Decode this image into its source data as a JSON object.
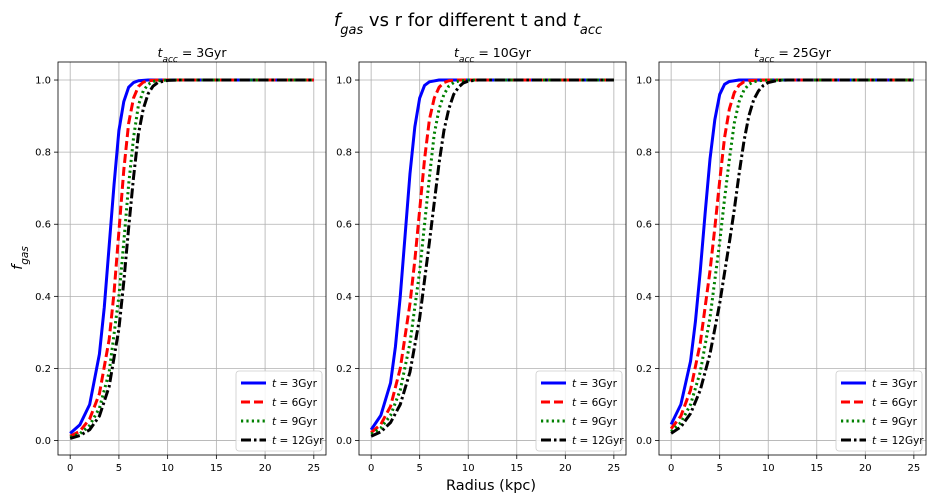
{
  "figure": {
    "suptitle_parts": [
      {
        "t": "f",
        "style": "italic",
        "sub": false
      },
      {
        "t": "gas",
        "style": "italic",
        "sub": true
      },
      {
        "t": " vs r for different t and ",
        "style": "normal",
        "sub": false
      },
      {
        "t": "t",
        "style": "italic",
        "sub": false
      },
      {
        "t": "acc",
        "style": "italic",
        "sub": true
      }
    ],
    "xlabel": "Radius (kpc)",
    "ylabel_parts": [
      {
        "t": "f",
        "style": "italic",
        "sub": false
      },
      {
        "t": "gas",
        "style": "italic",
        "sub": true
      }
    ],
    "background": "#ffffff",
    "grid_color": "#b0b0b0"
  },
  "chart_data": [
    {
      "type": "line",
      "title_parts": [
        {
          "t": "t",
          "style": "italic",
          "sub": false
        },
        {
          "t": "acc",
          "style": "italic",
          "sub": true
        },
        {
          "t": " = 3Gyr",
          "style": "normal",
          "sub": false
        }
      ],
      "xlim": [
        -1.25,
        26.25
      ],
      "ylim": [
        -0.04,
        1.05
      ],
      "xticks": [
        0,
        5,
        10,
        15,
        20,
        25
      ],
      "yticks": [
        0.0,
        0.2,
        0.4,
        0.6,
        0.8,
        1.0
      ],
      "grid": true,
      "legend_loc": "lower right",
      "series": [
        {
          "name": "t = 3Gyr",
          "color": "#0000ff",
          "dash": "solid",
          "x": [
            0,
            1,
            2,
            3,
            3.5,
            4,
            4.5,
            5,
            5.5,
            6,
            6.5,
            7,
            8,
            9,
            10,
            12,
            15,
            20,
            25
          ],
          "y": [
            0.02,
            0.044,
            0.1,
            0.24,
            0.37,
            0.54,
            0.71,
            0.86,
            0.94,
            0.98,
            0.993,
            0.998,
            1.0,
            1.0,
            1.0,
            1.0,
            1.0,
            1.0,
            1.0
          ]
        },
        {
          "name": "t = 6Gyr",
          "color": "#ff0000",
          "dash": "dashed",
          "x": [
            0,
            1,
            2,
            3,
            4,
            4.5,
            5,
            5.5,
            6,
            6.5,
            7,
            7.5,
            8,
            9,
            10,
            12,
            15,
            20,
            25
          ],
          "y": [
            0.012,
            0.026,
            0.06,
            0.13,
            0.28,
            0.41,
            0.58,
            0.75,
            0.88,
            0.95,
            0.982,
            0.994,
            0.998,
            1.0,
            1.0,
            1.0,
            1.0,
            1.0,
            1.0
          ]
        },
        {
          "name": "t = 9Gyr",
          "color": "#008000",
          "dash": "dotted",
          "x": [
            0,
            1,
            2,
            3,
            4,
            5,
            5.5,
            6,
            6.5,
            7,
            7.5,
            8,
            8.5,
            9,
            10,
            12,
            15,
            20,
            25
          ],
          "y": [
            0.009,
            0.019,
            0.042,
            0.09,
            0.19,
            0.4,
            0.55,
            0.71,
            0.84,
            0.93,
            0.97,
            0.988,
            0.996,
            0.998,
            1.0,
            1.0,
            1.0,
            1.0,
            1.0
          ]
        },
        {
          "name": "t = 12Gyr",
          "color": "#000000",
          "dash": "dashdot",
          "x": [
            0,
            1,
            2,
            3,
            4,
            5,
            5.5,
            6,
            6.5,
            7,
            7.5,
            8,
            8.5,
            9,
            10,
            11,
            12,
            15,
            20,
            25
          ],
          "y": [
            0.006,
            0.014,
            0.03,
            0.068,
            0.15,
            0.31,
            0.44,
            0.59,
            0.73,
            0.85,
            0.92,
            0.962,
            0.983,
            0.993,
            0.999,
            1.0,
            1.0,
            1.0,
            1.0,
            1.0
          ]
        }
      ]
    },
    {
      "type": "line",
      "title_parts": [
        {
          "t": "t",
          "style": "italic",
          "sub": false
        },
        {
          "t": "acc",
          "style": "italic",
          "sub": true
        },
        {
          "t": " = 10Gyr",
          "style": "normal",
          "sub": false
        }
      ],
      "xlim": [
        -1.25,
        26.25
      ],
      "ylim": [
        -0.04,
        1.05
      ],
      "xticks": [
        0,
        5,
        10,
        15,
        20,
        25
      ],
      "yticks": [
        0.0,
        0.2,
        0.4,
        0.6,
        0.8,
        1.0
      ],
      "grid": true,
      "legend_loc": "lower right",
      "series": [
        {
          "name": "t = 3Gyr",
          "color": "#0000ff",
          "dash": "solid",
          "x": [
            0,
            1,
            2,
            2.5,
            3,
            3.5,
            4,
            4.5,
            5,
            5.5,
            6,
            7,
            8,
            10,
            12,
            15,
            20,
            25
          ],
          "y": [
            0.03,
            0.07,
            0.16,
            0.26,
            0.4,
            0.57,
            0.74,
            0.87,
            0.95,
            0.985,
            0.995,
            1.0,
            1.0,
            1.0,
            1.0,
            1.0,
            1.0,
            1.0
          ]
        },
        {
          "name": "t = 6Gyr",
          "color": "#ff0000",
          "dash": "dashed",
          "x": [
            0,
            1,
            2,
            3,
            4,
            4.5,
            5,
            5.5,
            6,
            6.5,
            7,
            7.5,
            8,
            9,
            10,
            12,
            15,
            20,
            25
          ],
          "y": [
            0.022,
            0.045,
            0.095,
            0.2,
            0.38,
            0.5,
            0.64,
            0.78,
            0.89,
            0.95,
            0.98,
            0.993,
            0.998,
            1.0,
            1.0,
            1.0,
            1.0,
            1.0,
            1.0
          ]
        },
        {
          "name": "t = 9Gyr",
          "color": "#008000",
          "dash": "dotted",
          "x": [
            0,
            1,
            2,
            3,
            4,
            5,
            5.5,
            6,
            6.5,
            7,
            7.5,
            8,
            8.5,
            9,
            10,
            12,
            15,
            20,
            25
          ],
          "y": [
            0.018,
            0.035,
            0.07,
            0.14,
            0.27,
            0.47,
            0.6,
            0.73,
            0.85,
            0.92,
            0.96,
            0.983,
            0.993,
            0.997,
            1.0,
            1.0,
            1.0,
            1.0,
            1.0
          ]
        },
        {
          "name": "t = 12Gyr",
          "color": "#000000",
          "dash": "dashdot",
          "x": [
            0,
            1,
            2,
            3,
            4,
            5,
            6,
            6.5,
            7,
            7.5,
            8,
            8.5,
            9,
            9.5,
            10,
            11,
            12,
            15,
            20,
            25
          ],
          "y": [
            0.012,
            0.024,
            0.05,
            0.1,
            0.19,
            0.34,
            0.55,
            0.66,
            0.77,
            0.86,
            0.92,
            0.96,
            0.98,
            0.992,
            0.997,
            1.0,
            1.0,
            1.0,
            1.0,
            1.0
          ]
        }
      ]
    },
    {
      "type": "line",
      "title_parts": [
        {
          "t": "t",
          "style": "italic",
          "sub": false
        },
        {
          "t": "acc",
          "style": "italic",
          "sub": true
        },
        {
          "t": " = 25Gyr",
          "style": "normal",
          "sub": false
        }
      ],
      "xlim": [
        -1.25,
        26.25
      ],
      "ylim": [
        -0.04,
        1.05
      ],
      "xticks": [
        0,
        5,
        10,
        15,
        20,
        25
      ],
      "yticks": [
        0.0,
        0.2,
        0.4,
        0.6,
        0.8,
        1.0
      ],
      "grid": true,
      "legend_loc": "lower right",
      "series": [
        {
          "name": "t = 3Gyr",
          "color": "#0000ff",
          "dash": "solid",
          "x": [
            0,
            1,
            2,
            2.5,
            3,
            3.5,
            4,
            4.5,
            5,
            5.5,
            6,
            7,
            8,
            10,
            12,
            15,
            20,
            25
          ],
          "y": [
            0.045,
            0.1,
            0.22,
            0.33,
            0.47,
            0.63,
            0.78,
            0.89,
            0.96,
            0.988,
            0.996,
            1.0,
            1.0,
            1.0,
            1.0,
            1.0,
            1.0,
            1.0
          ]
        },
        {
          "name": "t = 6Gyr",
          "color": "#ff0000",
          "dash": "dashed",
          "x": [
            0,
            1,
            2,
            3,
            4,
            4.5,
            5,
            5.5,
            6,
            6.5,
            7,
            7.5,
            8,
            9,
            10,
            12,
            15,
            20,
            25
          ],
          "y": [
            0.033,
            0.068,
            0.14,
            0.27,
            0.47,
            0.59,
            0.72,
            0.84,
            0.92,
            0.965,
            0.986,
            0.995,
            0.998,
            1.0,
            1.0,
            1.0,
            1.0,
            1.0,
            1.0
          ]
        },
        {
          "name": "t = 9Gyr",
          "color": "#008000",
          "dash": "dotted",
          "x": [
            0,
            1,
            2,
            3,
            4,
            5,
            5.5,
            6,
            6.5,
            7,
            7.5,
            8,
            8.5,
            9,
            10,
            12,
            15,
            20,
            25
          ],
          "y": [
            0.025,
            0.05,
            0.1,
            0.19,
            0.34,
            0.55,
            0.67,
            0.78,
            0.88,
            0.94,
            0.972,
            0.988,
            0.995,
            0.998,
            1.0,
            1.0,
            1.0,
            1.0,
            1.0
          ]
        },
        {
          "name": "t = 12Gyr",
          "color": "#000000",
          "dash": "dashdot",
          "x": [
            0,
            1,
            2,
            3,
            4,
            5,
            6,
            6.5,
            7,
            7.5,
            8,
            8.5,
            9,
            9.5,
            10,
            11,
            12,
            15,
            20,
            25
          ],
          "y": [
            0.02,
            0.038,
            0.075,
            0.14,
            0.24,
            0.38,
            0.55,
            0.64,
            0.74,
            0.83,
            0.9,
            0.945,
            0.97,
            0.985,
            0.993,
            0.999,
            1.0,
            1.0,
            1.0,
            1.0
          ]
        }
      ]
    }
  ]
}
